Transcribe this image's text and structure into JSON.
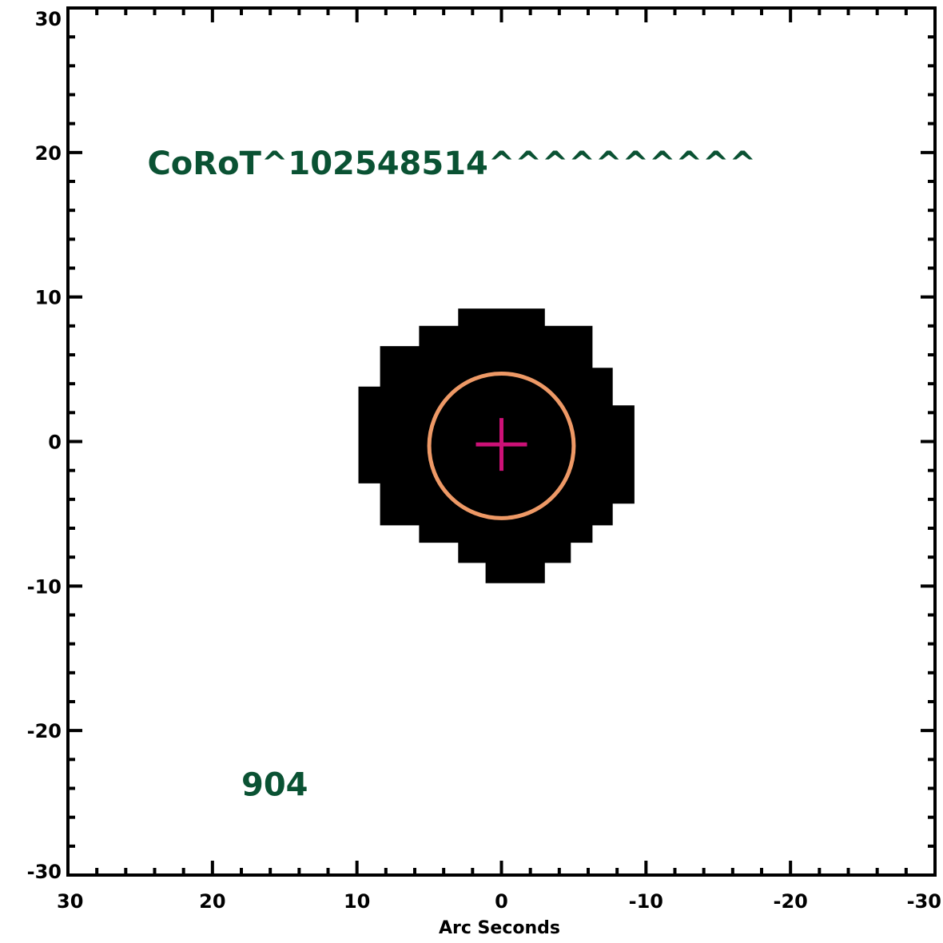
{
  "chart_data": {
    "type": "scatter",
    "xlabel": "Arc Seconds",
    "ylabel": "",
    "xlim": [
      30,
      -30
    ],
    "ylim": [
      -30,
      30
    ],
    "x_ticks": [
      30,
      20,
      10,
      0,
      -10,
      -20,
      -30
    ],
    "y_ticks": [
      30,
      20,
      10,
      0,
      -10,
      -20,
      -30
    ],
    "x_tick_labels": [
      "30",
      "20",
      "10",
      "0",
      "-10",
      "-20",
      "-30"
    ],
    "y_tick_labels": [
      "30",
      "20",
      "10",
      "0",
      "-10",
      "-20",
      "-30"
    ],
    "grid": false,
    "aperture": {
      "color": "#000000",
      "outline": [
        [
          -3,
          9.2
        ],
        [
          3,
          9.2
        ],
        [
          3,
          8
        ],
        [
          5.7,
          8
        ],
        [
          5.7,
          6.6
        ],
        [
          8.4,
          6.6
        ],
        [
          8.4,
          3.8
        ],
        [
          9.9,
          3.8
        ],
        [
          9.9,
          -2.9
        ],
        [
          8.4,
          -2.9
        ],
        [
          8.4,
          -5.8
        ],
        [
          5.7,
          -5.8
        ],
        [
          5.7,
          -7
        ],
        [
          3,
          -7
        ],
        [
          3,
          -8.4
        ],
        [
          1.1,
          -8.4
        ],
        [
          1.1,
          -9.8
        ],
        [
          -3,
          -9.8
        ],
        [
          -3,
          -8.4
        ],
        [
          -4.8,
          -8.4
        ],
        [
          -4.8,
          -7
        ],
        [
          -6.3,
          -7
        ],
        [
          -6.3,
          -5.8
        ],
        [
          -7.7,
          -5.8
        ],
        [
          -7.7,
          -4.3
        ],
        [
          -9.2,
          -4.3
        ],
        [
          -9.2,
          2.5
        ],
        [
          -7.7,
          2.5
        ],
        [
          -7.7,
          5.1
        ],
        [
          -6.3,
          5.1
        ],
        [
          -6.3,
          8
        ],
        [
          -3,
          8
        ]
      ]
    },
    "circle": {
      "center": [
        0,
        -0.3
      ],
      "radius": 5,
      "color": "#EE9966"
    },
    "target_marker": {
      "x": 0,
      "y": -0.2,
      "color": "#CC1177"
    },
    "annotations": [
      {
        "text": "CoRoT^102548514^^^^^^^^^^",
        "x": 24.5,
        "y": 18.5,
        "color": "#0A5233"
      },
      {
        "text": "904",
        "x": 18,
        "y": -24.5,
        "color": "#0A5233"
      }
    ]
  }
}
